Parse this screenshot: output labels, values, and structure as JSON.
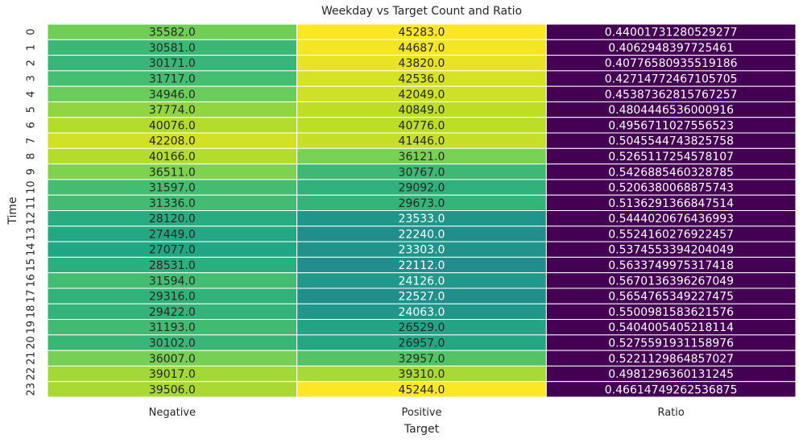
{
  "chart_data": {
    "type": "heatmap",
    "title": "Weekday vs Target Count and Ratio",
    "xlabel": "Target",
    "ylabel": "Time",
    "columns": [
      "Negative",
      "Positive",
      "Ratio"
    ],
    "rows": [
      "0",
      "1",
      "2",
      "3",
      "4",
      "5",
      "6",
      "7",
      "8",
      "9",
      "10",
      "11",
      "12",
      "13",
      "14",
      "15",
      "16",
      "17",
      "18",
      "19",
      "20",
      "21",
      "22",
      "23"
    ],
    "values": [
      [
        "35582.0",
        "45283.0",
        "0.44001731280529277"
      ],
      [
        "30581.0",
        "44687.0",
        "0.4062948397725461"
      ],
      [
        "30171.0",
        "43820.0",
        "0.40776580935519186"
      ],
      [
        "31717.0",
        "42536.0",
        "0.42714772467105705"
      ],
      [
        "34946.0",
        "42049.0",
        "0.45387362815767257"
      ],
      [
        "37774.0",
        "40849.0",
        "0.4804446536000916"
      ],
      [
        "40076.0",
        "40776.0",
        "0.4956711027556523"
      ],
      [
        "42208.0",
        "41446.0",
        "0.5045544743825758"
      ],
      [
        "40166.0",
        "36121.0",
        "0.5265117254578107"
      ],
      [
        "36511.0",
        "30767.0",
        "0.5426885460328785"
      ],
      [
        "31597.0",
        "29092.0",
        "0.5206380068875743"
      ],
      [
        "31336.0",
        "29673.0",
        "0.5136291366847514"
      ],
      [
        "28120.0",
        "23533.0",
        "0.5444020676436993"
      ],
      [
        "27449.0",
        "22240.0",
        "0.5524160276922457"
      ],
      [
        "27077.0",
        "23303.0",
        "0.5374553394204049"
      ],
      [
        "28531.0",
        "22112.0",
        "0.5633749975317418"
      ],
      [
        "31594.0",
        "24126.0",
        "0.5670136396267049"
      ],
      [
        "29316.0",
        "22527.0",
        "0.5654765349227475"
      ],
      [
        "29422.0",
        "24063.0",
        "0.5500981583621576"
      ],
      [
        "31193.0",
        "26529.0",
        "0.5404005405218114"
      ],
      [
        "30102.0",
        "26957.0",
        "0.5275591931158976"
      ],
      [
        "36007.0",
        "32957.0",
        "0.5221129864857027"
      ],
      [
        "39017.0",
        "39310.0",
        "0.4981296360131245"
      ],
      [
        "39506.0",
        "45244.0",
        "0.46614749262536875"
      ]
    ],
    "colormap": "viridis",
    "vmin": 0.4062948397725461,
    "vmax": 45283.0,
    "grid": true
  }
}
